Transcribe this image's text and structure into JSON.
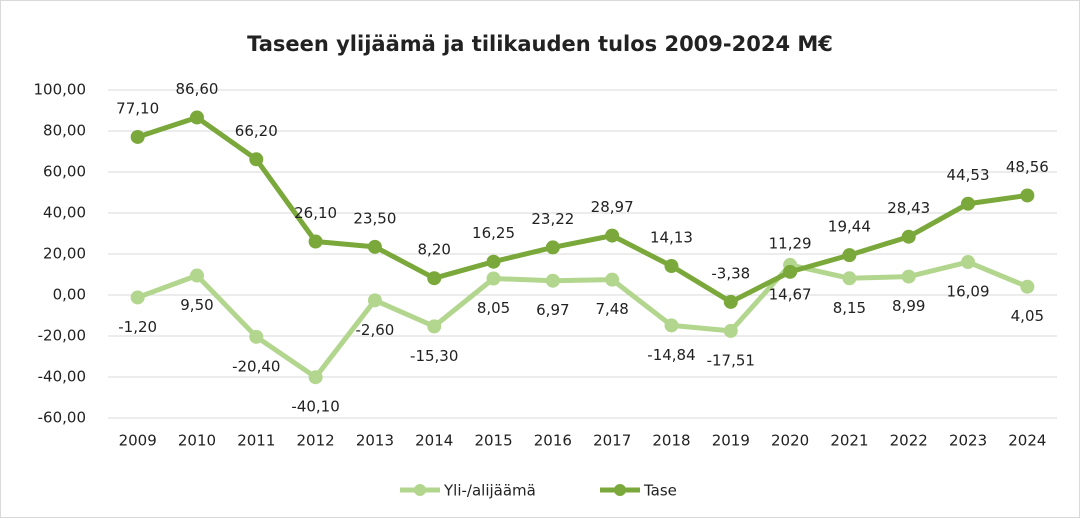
{
  "chart_data": {
    "type": "line",
    "title": "Taseen ylijäämä ja tilikauden tulos 2009-2024 M€",
    "categories": [
      "2009",
      "2010",
      "2011",
      "2012",
      "2013",
      "2014",
      "2015",
      "2016",
      "2017",
      "2018",
      "2019",
      "2020",
      "2021",
      "2022",
      "2023",
      "2024"
    ],
    "series": [
      {
        "name": "Yli-/alijäämä",
        "color": "#b3d68f",
        "values": [
          -1.2,
          9.5,
          -20.4,
          -40.1,
          -2.6,
          -15.3,
          8.05,
          6.97,
          7.48,
          -14.84,
          -17.51,
          14.67,
          8.15,
          8.99,
          16.09,
          4.05
        ],
        "value_labels": [
          "-1,20",
          "9,50",
          "-20,40",
          "-40,10",
          "-2,60",
          "-15,30",
          "8,05",
          "6,97",
          "7,48",
          "-14,84",
          "-17,51",
          "14,67",
          "8,15",
          "8,99",
          "16,09",
          "4,05"
        ]
      },
      {
        "name": "Tase",
        "color": "#7aa83a",
        "values": [
          77.1,
          86.6,
          66.2,
          26.1,
          23.5,
          8.2,
          16.25,
          23.22,
          28.97,
          14.13,
          -3.38,
          11.29,
          19.44,
          28.43,
          44.53,
          48.56
        ],
        "value_labels": [
          "77,10",
          "86,60",
          "66,20",
          "26,10",
          "23,50",
          "8,20",
          "16,25",
          "23,22",
          "28,97",
          "14,13",
          "-3,38",
          "11,29",
          "19,44",
          "28,43",
          "44,53",
          "48,56"
        ]
      }
    ],
    "ylim": [
      -60,
      100
    ],
    "yticks": [
      {
        "value": -60,
        "label": "-60,00"
      },
      {
        "value": -40,
        "label": "-40,00"
      },
      {
        "value": -20,
        "label": "-20,00"
      },
      {
        "value": 0,
        "label": "0,00"
      },
      {
        "value": 20,
        "label": "20,00"
      },
      {
        "value": 40,
        "label": "40,00"
      },
      {
        "value": 60,
        "label": "60,00"
      },
      {
        "value": 80,
        "label": "80,00"
      },
      {
        "value": 100,
        "label": "100,00"
      }
    ],
    "grid": true,
    "legend": "bottom"
  }
}
